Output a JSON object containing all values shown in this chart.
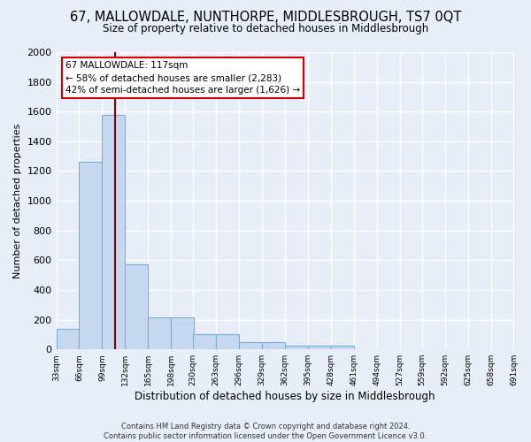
{
  "title": "67, MALLOWDALE, NUNTHORPE, MIDDLESBROUGH, TS7 0QT",
  "subtitle": "Size of property relative to detached houses in Middlesbrough",
  "xlabel": "Distribution of detached houses by size in Middlesbrough",
  "ylabel": "Number of detached properties",
  "bar_color": "#c5d8f0",
  "bar_edge_color": "#7aafd4",
  "background_color": "#e8eef8",
  "fig_background_color": "#e8eef8",
  "grid_color": "#ffffff",
  "bin_edges": [
    33,
    66,
    99,
    132,
    165,
    198,
    230,
    263,
    296,
    329,
    362,
    395,
    428,
    461,
    494,
    527,
    559,
    592,
    625,
    658,
    691
  ],
  "bin_labels": [
    "33sqm",
    "66sqm",
    "99sqm",
    "132sqm",
    "165sqm",
    "198sqm",
    "230sqm",
    "263sqm",
    "296sqm",
    "329sqm",
    "362sqm",
    "395sqm",
    "428sqm",
    "461sqm",
    "494sqm",
    "527sqm",
    "559sqm",
    "592sqm",
    "625sqm",
    "658sqm",
    "691sqm"
  ],
  "bar_heights": [
    140,
    1265,
    1575,
    570,
    215,
    215,
    100,
    100,
    50,
    50,
    25,
    25,
    25,
    0,
    0,
    0,
    0,
    0,
    0,
    0
  ],
  "ylim": [
    0,
    2000
  ],
  "yticks": [
    0,
    200,
    400,
    600,
    800,
    1000,
    1200,
    1400,
    1600,
    1800,
    2000
  ],
  "property_size": 117,
  "property_line_color": "#8b0000",
  "annotation_text": "67 MALLOWDALE: 117sqm\n← 58% of detached houses are smaller (2,283)\n42% of semi-detached houses are larger (1,626) →",
  "annotation_box_color": "#ffffff",
  "annotation_box_edge_color": "#cc0000",
  "footer_line1": "Contains HM Land Registry data © Crown copyright and database right 2024.",
  "footer_line2": "Contains public sector information licensed under the Open Government Licence v3.0."
}
